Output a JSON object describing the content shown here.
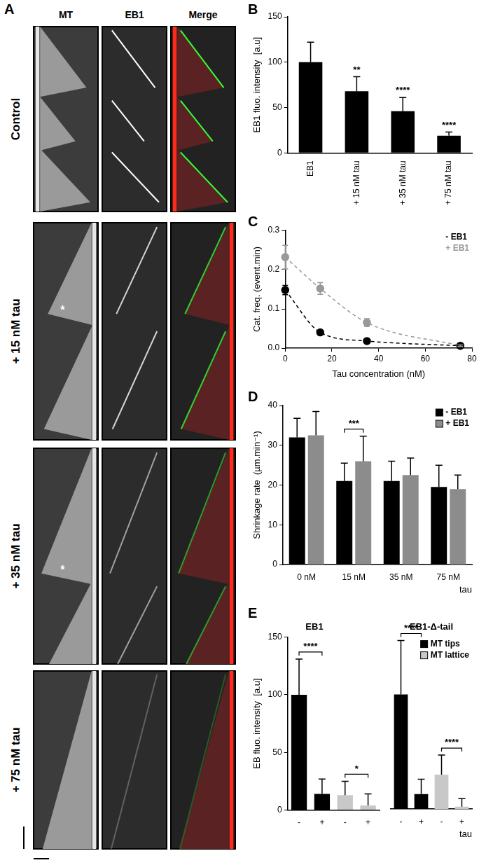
{
  "kymographs": {
    "panel": "A",
    "columns": [
      "MT",
      "EB1",
      "Merge"
    ],
    "rows": [
      "Control",
      "+ 15 nM tau",
      "+ 35 nM tau",
      "+ 75 nM tau"
    ],
    "marks": [
      {
        "row": 1,
        "column": 0,
        "text": "*"
      },
      {
        "row": 2,
        "column": 0,
        "text": "*"
      }
    ]
  },
  "chart_data": [
    {
      "panel": "B",
      "type": "bar",
      "categories": [
        "EB1",
        "+ 15 nM tau",
        "+ 35 nM tau",
        "+ 75 nM tau"
      ],
      "values": [
        100,
        68,
        46,
        19
      ],
      "errors": [
        22,
        16,
        15,
        4
      ],
      "color": "#000000",
      "ylabel": "EB1 fluo. intensity  [a.u]",
      "ylim": [
        0,
        150
      ],
      "yticks": [
        0,
        50,
        100,
        150
      ],
      "grid": false,
      "annotations": [
        {
          "category": "+ 15 nM tau",
          "text": "**"
        },
        {
          "category": "+ 35 nM tau",
          "text": "****"
        },
        {
          "category": "+ 75 nM tau",
          "text": "****"
        }
      ]
    },
    {
      "panel": "C",
      "type": "line",
      "xlabel": "Tau concentration (nM)",
      "ylabel": "Cat. freq. (event.min)",
      "x": [
        0,
        15,
        35,
        75
      ],
      "series": [
        {
          "name": "- EB1",
          "color": "#000000",
          "values": [
            0.148,
            0.04,
            0.018,
            0.006
          ],
          "errors": [
            0.012,
            0.004,
            0.003,
            0.002
          ],
          "marker": "circle",
          "line_style": "dashed"
        },
        {
          "name": "+ EB1",
          "color": "#999999",
          "values": [
            0.232,
            0.152,
            0.065,
            0.006
          ],
          "errors": [
            0.03,
            0.015,
            0.01,
            0.002
          ],
          "marker": "circle",
          "line_style": "dashed"
        }
      ],
      "xlim": [
        0,
        80
      ],
      "xticks": [
        0,
        20,
        40,
        60,
        80
      ],
      "ylim": [
        0,
        0.3
      ],
      "yticks": [
        {
          "value": 0,
          "label": "0.0"
        },
        0.1,
        0.2,
        0.3
      ],
      "legend": "upper right",
      "grid": false
    },
    {
      "panel": "D",
      "type": "bar",
      "categories": [
        "0 nM",
        "15 nM",
        "35 nM",
        "75 nM"
      ],
      "xlabel": "tau",
      "ylabel": "Shrinkage rate  (µm.min⁻¹)",
      "series": [
        {
          "name": "- EB1",
          "color": "#000000",
          "values": [
            32,
            21,
            21,
            19.5
          ],
          "errors": [
            4.8,
            4.5,
            5,
            5.5
          ]
        },
        {
          "name": "+ EB1",
          "color": "#8c8c8c",
          "values": [
            32.5,
            26,
            22.5,
            19
          ],
          "errors": [
            6,
            6.3,
            4.3,
            3.5
          ]
        }
      ],
      "ylim": [
        0,
        40
      ],
      "yticks": [
        0,
        10,
        20,
        30,
        40
      ],
      "legend": "upper right",
      "grid": false,
      "annotations": [
        {
          "category": "15 nM",
          "text": "***"
        }
      ]
    },
    {
      "panel": "E",
      "type": "bar",
      "title": "EB1",
      "categories": [
        "-",
        "+",
        "-",
        "+"
      ],
      "ylabel": "EB fluo. intensity  [a.u]",
      "series": [
        {
          "name": "MT tips",
          "color": "#000000",
          "values": [
            100,
            14,
            null,
            null
          ],
          "errors": [
            31,
            13,
            null,
            null
          ]
        },
        {
          "name": "MT lattice",
          "color": "#c8c8c8",
          "values": [
            null,
            null,
            13,
            4
          ],
          "errors": [
            null,
            null,
            12,
            10
          ]
        }
      ],
      "ylim": [
        0,
        150
      ],
      "yticks": [
        0,
        50,
        100,
        150
      ],
      "grid": false,
      "annotations": [
        {
          "bars": [
            0,
            1
          ],
          "text": "****"
        },
        {
          "bars": [
            2,
            3
          ],
          "text": "*"
        }
      ]
    },
    {
      "type": "bar",
      "title": "EB1-Δ-tail",
      "categories": [
        "-",
        "+",
        "-",
        "+"
      ],
      "xlabel": "tau",
      "series": [
        {
          "name": "MT tips",
          "color": "#000000",
          "values": [
            100,
            13,
            null,
            null
          ],
          "errors": [
            47,
            13,
            null,
            null
          ]
        },
        {
          "name": "MT lattice",
          "color": "#c8c8c8",
          "values": [
            null,
            null,
            30,
            2
          ],
          "errors": [
            null,
            null,
            17,
            7
          ]
        }
      ],
      "ylim": [
        0,
        150
      ],
      "tick_labels": "x",
      "legend": "upper right",
      "grid": false,
      "annotations": [
        {
          "bars": [
            0,
            1
          ],
          "text": "****"
        },
        {
          "bars": [
            2,
            3
          ],
          "text": "****"
        }
      ]
    }
  ]
}
